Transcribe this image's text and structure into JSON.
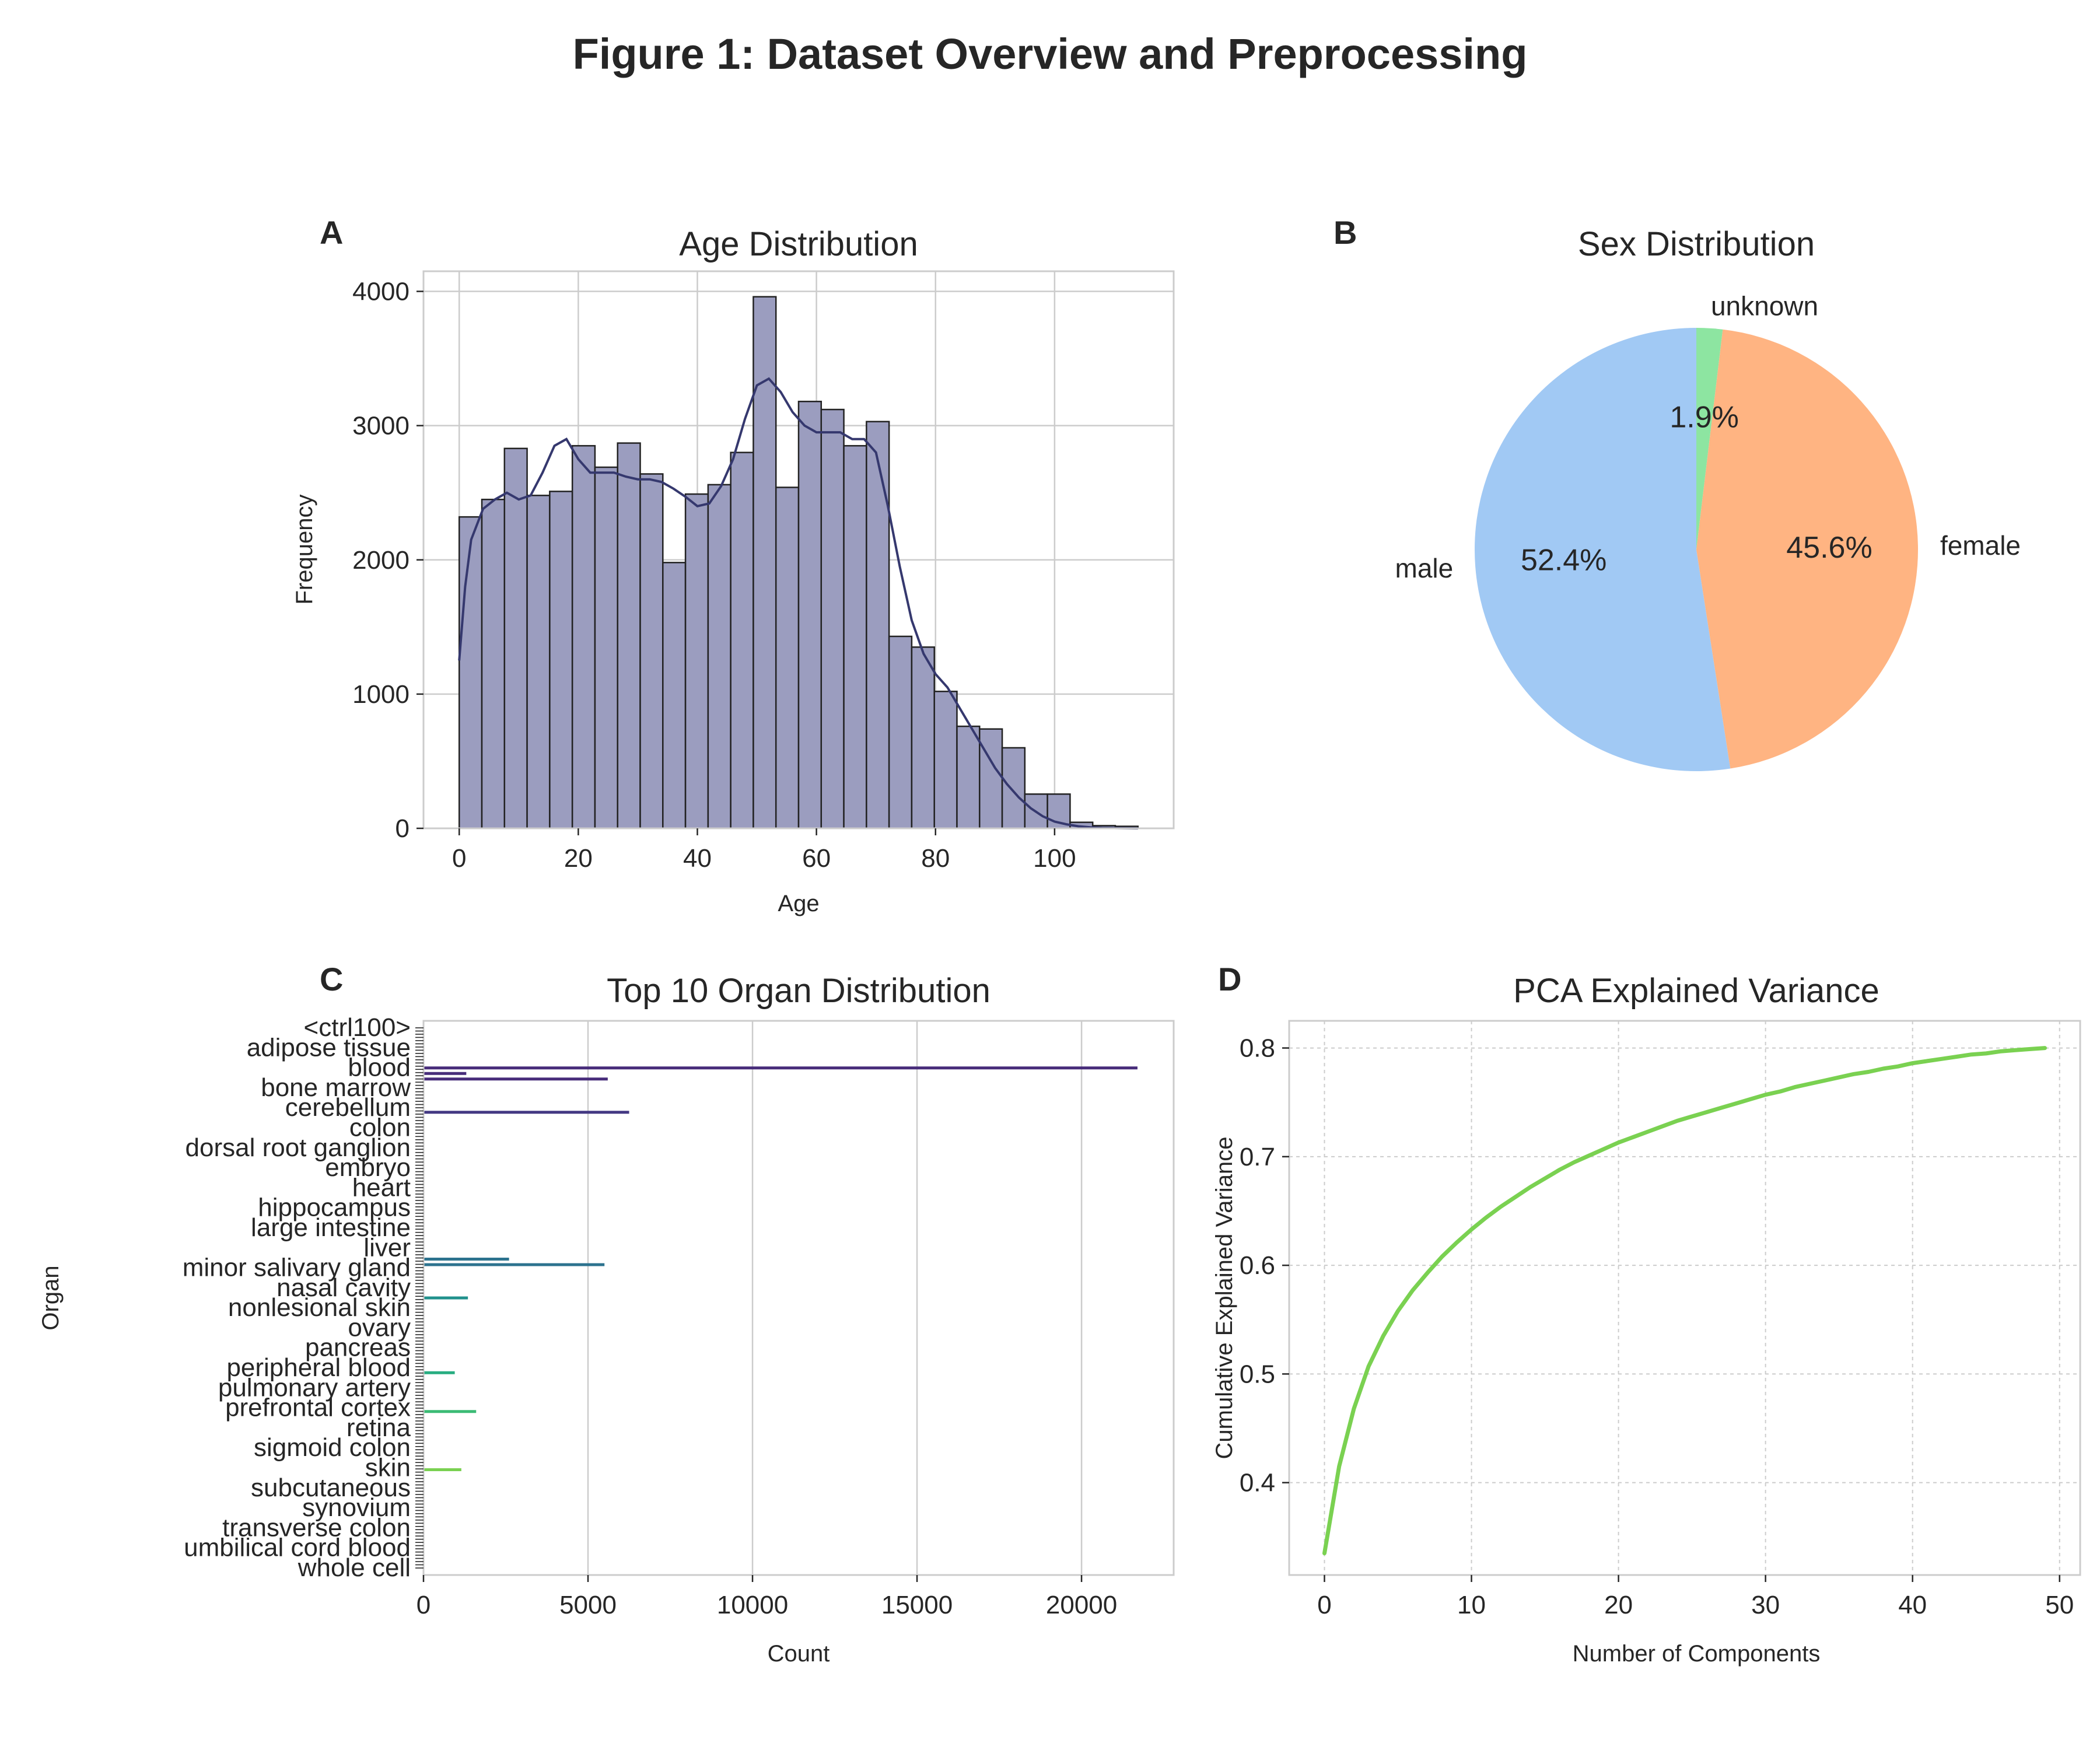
{
  "figure": {
    "title": "Figure 1: Dataset Overview and Preprocessing"
  },
  "chart_data": [
    {
      "id": "A",
      "panel_label": "A",
      "type": "bar",
      "subtype": "histogram_with_kde",
      "title": "Age Distribution",
      "xlabel": "Age",
      "ylabel": "Frequency",
      "xlim": [
        -6,
        120
      ],
      "ylim": [
        0,
        4150
      ],
      "xticks": [
        0,
        20,
        40,
        60,
        80,
        100
      ],
      "yticks": [
        0,
        1000,
        2000,
        3000,
        4000
      ],
      "grid": true,
      "bar_color": "#9b9dbf",
      "line_color": "#35386e",
      "bin_width": 3.8,
      "bin_start": 0,
      "values": [
        2320,
        2450,
        2830,
        2480,
        2510,
        2850,
        2690,
        2870,
        2640,
        1980,
        2490,
        2560,
        2800,
        3960,
        2540,
        3180,
        3120,
        2850,
        3030,
        1430,
        1350,
        1020,
        760,
        740,
        600,
        255,
        255,
        45,
        20,
        15
      ],
      "kde": {
        "x": [
          0,
          1,
          2,
          4,
          6,
          8,
          10,
          12,
          14,
          16,
          18,
          20,
          22,
          24,
          26,
          28,
          30,
          32,
          34,
          36,
          38,
          40,
          42,
          44,
          46,
          48,
          50,
          52,
          54,
          56,
          58,
          60,
          62,
          64,
          66,
          68,
          70,
          72,
          74,
          76,
          78,
          80,
          82,
          84,
          86,
          88,
          90,
          92,
          94,
          96,
          98,
          100,
          102,
          104,
          106,
          108,
          110,
          114
        ],
        "y": [
          1250,
          1800,
          2150,
          2380,
          2450,
          2500,
          2450,
          2480,
          2650,
          2850,
          2900,
          2750,
          2650,
          2650,
          2650,
          2620,
          2600,
          2600,
          2580,
          2530,
          2470,
          2400,
          2420,
          2550,
          2750,
          3050,
          3300,
          3350,
          3250,
          3100,
          3000,
          2950,
          2950,
          2950,
          2900,
          2900,
          2800,
          2400,
          1950,
          1550,
          1300,
          1150,
          1050,
          900,
          750,
          600,
          450,
          330,
          230,
          150,
          90,
          50,
          30,
          15,
          8,
          4,
          2,
          0
        ]
      }
    },
    {
      "id": "B",
      "panel_label": "B",
      "type": "pie",
      "title": "Sex Distribution",
      "labels": [
        "male",
        "female",
        "unknown"
      ],
      "values": [
        52.4,
        45.6,
        1.9
      ],
      "pct_labels": [
        "52.4%",
        "45.6%",
        "1.9%"
      ],
      "colors": [
        "#a1c9f4",
        "#ffb482",
        "#8de5a1"
      ]
    },
    {
      "id": "C",
      "panel_label": "C",
      "type": "bar",
      "orientation": "horizontal",
      "title": "Top 10 Organ Distribution",
      "xlabel": "Count",
      "ylabel": "Organ",
      "xlim": [
        0,
        22800
      ],
      "xticks": [
        0,
        5000,
        10000,
        15000,
        20000
      ],
      "grid": true,
      "visible_ticklabels": [
        "<ctrl100>",
        "adipose tissue",
        "blood",
        "bone marrow",
        "cerebellum",
        "colon",
        "dorsal root ganglion",
        "embryo",
        "heart",
        "hippocampus",
        "large intestine",
        "liver",
        "minor salivary gland",
        "nasal cavity",
        "nonlesional skin",
        "ovary",
        "pancreas",
        "peripheral blood",
        "pulmonary artery",
        "prefrontal cortex",
        "retina",
        "sigmoid colon",
        "skin",
        "subcutaneous",
        "synovium",
        "transverse colon",
        "umbilical cord blood",
        "whole cell"
      ],
      "bars": [
        {
          "position": 0.085,
          "value": 21700,
          "color": "#472c7a"
        },
        {
          "position": 0.095,
          "value": 1300,
          "color": "#472c7a"
        },
        {
          "position": 0.105,
          "value": 5600,
          "color": "#472c7a"
        },
        {
          "position": 0.165,
          "value": 6250,
          "color": "#443983"
        },
        {
          "position": 0.43,
          "value": 2600,
          "color": "#2c728e"
        },
        {
          "position": 0.44,
          "value": 5500,
          "color": "#2c728e"
        },
        {
          "position": 0.5,
          "value": 1350,
          "color": "#21918c"
        },
        {
          "position": 0.635,
          "value": 950,
          "color": "#27ad81"
        },
        {
          "position": 0.705,
          "value": 1600,
          "color": "#3bbb75"
        },
        {
          "position": 0.81,
          "value": 1150,
          "color": "#7ad151"
        }
      ]
    },
    {
      "id": "D",
      "panel_label": "D",
      "type": "line",
      "title": "PCA Explained Variance",
      "xlabel": "Number of Components",
      "ylabel": "Cumulative Explained Variance",
      "xlim": [
        -2.4,
        51.4
      ],
      "ylim": [
        0.315,
        0.825
      ],
      "xticks": [
        0,
        10,
        20,
        30,
        40,
        50
      ],
      "yticks": [
        0.4,
        0.5,
        0.6,
        0.7,
        0.8
      ],
      "ytick_labels": [
        "0.4",
        "0.5",
        "0.6",
        "0.7",
        "0.8"
      ],
      "grid": "dashed",
      "line_color": "#7ad151",
      "x": [
        0,
        1,
        2,
        3,
        4,
        5,
        6,
        7,
        8,
        9,
        10,
        11,
        12,
        13,
        14,
        15,
        16,
        17,
        18,
        19,
        20,
        21,
        22,
        23,
        24,
        25,
        26,
        27,
        28,
        29,
        30,
        31,
        32,
        33,
        34,
        35,
        36,
        37,
        38,
        39,
        40,
        41,
        42,
        43,
        44,
        45,
        46,
        47,
        48,
        49
      ],
      "y": [
        0.335,
        0.415,
        0.468,
        0.507,
        0.535,
        0.558,
        0.577,
        0.593,
        0.608,
        0.621,
        0.633,
        0.644,
        0.654,
        0.663,
        0.672,
        0.68,
        0.688,
        0.695,
        0.701,
        0.707,
        0.713,
        0.718,
        0.723,
        0.728,
        0.733,
        0.737,
        0.741,
        0.745,
        0.749,
        0.753,
        0.757,
        0.76,
        0.764,
        0.767,
        0.77,
        0.773,
        0.776,
        0.778,
        0.781,
        0.783,
        0.786,
        0.788,
        0.79,
        0.792,
        0.794,
        0.795,
        0.797,
        0.798,
        0.799,
        0.8
      ]
    }
  ]
}
